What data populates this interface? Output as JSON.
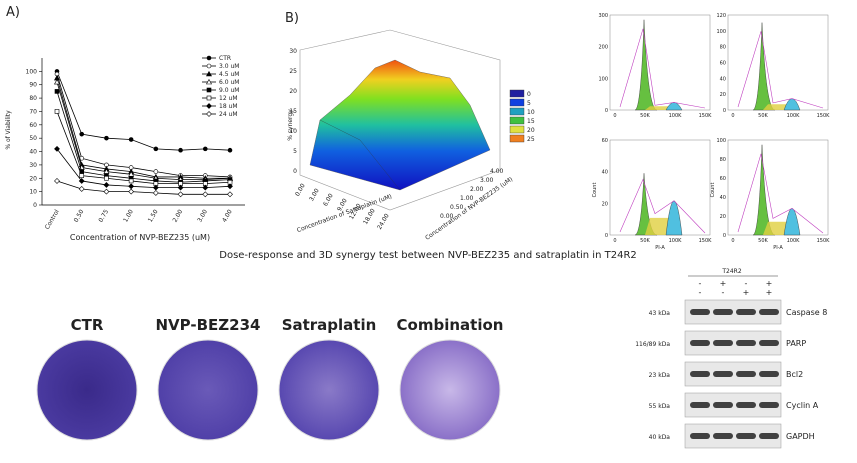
{
  "chart_data": {
    "type": "line",
    "title": "A)",
    "y_label": "% of Viability",
    "x_label": "Concentration of NVP-BEZ235 (uM)",
    "categories": [
      "Control",
      "0.50",
      "0.75",
      "1.00",
      "1.50",
      "2.00",
      "3.00",
      "4.00"
    ],
    "ylim": [
      0,
      110
    ],
    "yticks": [
      0,
      10,
      20,
      30,
      40,
      50,
      60,
      70,
      80,
      90,
      100
    ],
    "series": [
      {
        "name": "CTR",
        "color": "#000000",
        "values": [
          100,
          53,
          50,
          49,
          42,
          41,
          42,
          41
        ]
      },
      {
        "name": "3.0 uM",
        "color": "#000000",
        "values": [
          98,
          35,
          30,
          28,
          25,
          22,
          22,
          21
        ]
      },
      {
        "name": "4.5 uM",
        "color": "#000000",
        "values": [
          95,
          30,
          27,
          25,
          21,
          21,
          20,
          20
        ]
      },
      {
        "name": "6.0 uM",
        "color": "#000000",
        "values": [
          92,
          28,
          25,
          23,
          20,
          19,
          19,
          20
        ]
      },
      {
        "name": "9.0 uM",
        "color": "#000000",
        "values": [
          85,
          25,
          22,
          20,
          18,
          17,
          18,
          19
        ]
      },
      {
        "name": "12 uM",
        "color": "#000000",
        "values": [
          70,
          22,
          20,
          18,
          16,
          16,
          16,
          17
        ]
      },
      {
        "name": "18 uM",
        "color": "#000000",
        "values": [
          42,
          18,
          15,
          14,
          13,
          13,
          13,
          14
        ]
      },
      {
        "name": "24 uM",
        "color": "#000000",
        "values": [
          18,
          12,
          10,
          10,
          9,
          8,
          8,
          8
        ]
      }
    ]
  },
  "synergy": {
    "title": "B)",
    "z_label": "% synergy",
    "z_ticks": [
      "0",
      "5",
      "10",
      "15",
      "20",
      "25",
      "30"
    ],
    "x_label": "Concentration of Satraplatin (uM)",
    "y_label": "Concentration of NVP-BEZ235 (uM)",
    "x_ticks": [
      "0.00",
      "3.00",
      "6.00",
      "9.00",
      "12.00",
      "18.00",
      "24.00"
    ],
    "y_ticks": [
      "0.00",
      "0.50",
      "1.00",
      "2.00",
      "3.00",
      "4.00"
    ],
    "legend": [
      {
        "label": "0",
        "color": "#2020a0"
      },
      {
        "label": "5",
        "color": "#1040e0"
      },
      {
        "label": "10",
        "color": "#20a0c0"
      },
      {
        "label": "15",
        "color": "#40c040"
      },
      {
        "label": "20",
        "color": "#e0e040"
      },
      {
        "label": "25",
        "color": "#f08020"
      }
    ]
  },
  "caption": "Dose-response and 3D synergy test between NVP-BEZ235 and satraplatin in T24R2",
  "flow": {
    "x_label": "PI-A",
    "y_label": "Count",
    "x_ticks": [
      "0",
      "50K",
      "100K",
      "150K"
    ],
    "panels": [
      {
        "y_ticks": [
          "0",
          "100",
          "200",
          "300"
        ]
      },
      {
        "y_ticks": [
          "0",
          "20",
          "40",
          "60",
          "80",
          "100",
          "120"
        ]
      },
      {
        "y_ticks": [
          "0",
          "20",
          "40",
          "60"
        ]
      },
      {
        "y_ticks": [
          "0",
          "20",
          "40",
          "60",
          "80",
          "100"
        ]
      }
    ]
  },
  "colony": {
    "labels": [
      "CTR",
      "NVP-BEZ234",
      "Satraplatin",
      "Combination"
    ]
  },
  "western": {
    "group": "T24R2",
    "row1": [
      "-",
      "+",
      "-",
      "+"
    ],
    "row2": [
      "-",
      "-",
      "+",
      "+"
    ],
    "bands": [
      {
        "size": "43 kDa",
        "protein": "Caspase 8"
      },
      {
        "size": "116/89 kDa",
        "protein": "PARP"
      },
      {
        "size": "23 kDa",
        "protein": "Bcl2"
      },
      {
        "size": "55 kDa",
        "protein": "Cyclin A"
      },
      {
        "size": "40 kDa",
        "protein": "GAPDH"
      }
    ]
  }
}
